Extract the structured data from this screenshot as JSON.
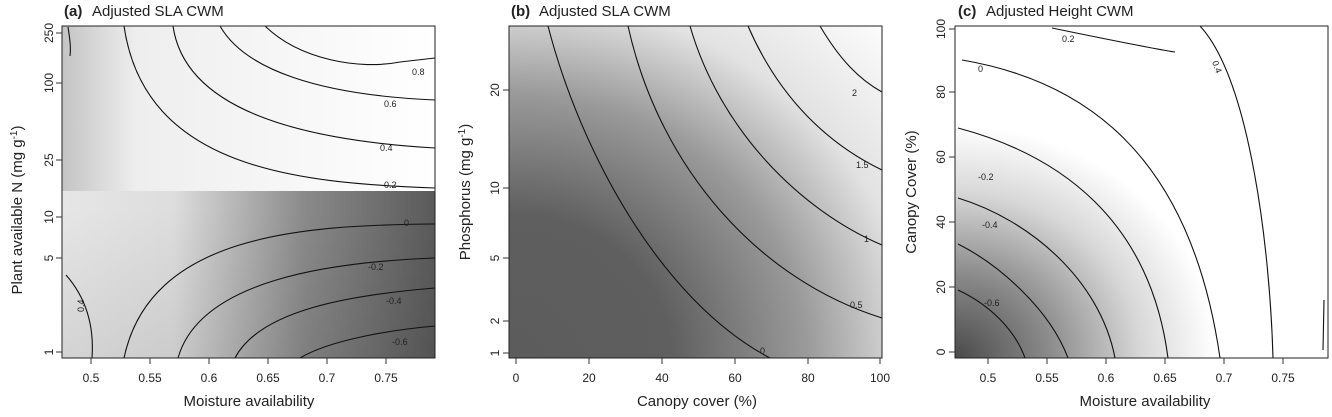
{
  "chart_data": [
    {
      "type": "heatmap",
      "panel_label": "(a)",
      "title": "Adjusted SLA CWM",
      "xlabel": "Moisture availability",
      "ylabel": "Plant available N (mg g-1)",
      "ylabel_sup": "-1",
      "ylabel_main": "Plant available N (mg g",
      "ylabel_close": ")",
      "xlim": [
        0.475,
        0.79
      ],
      "ylim": [
        0.95,
        280
      ],
      "yscale": "log",
      "xticks": [
        "0.5",
        "0.55",
        "0.6",
        "0.65",
        "0.7",
        "0.75"
      ],
      "yticks": [
        "1",
        "5",
        "10",
        "25",
        "100",
        "250"
      ],
      "contour_labels": [
        "0.8",
        "0.6",
        "0.4",
        "0.2",
        "0",
        "-0.2",
        "-0.4",
        "-0.6",
        "0.4"
      ]
    },
    {
      "type": "heatmap",
      "panel_label": "(b)",
      "title": "Adjusted SLA CWM",
      "xlabel": "Canopy cover (%)",
      "ylabel": "Phosphorus (mg g-1)",
      "ylabel_sup": "-1",
      "ylabel_main": "Phosphorus (mg g",
      "ylabel_close": ")",
      "xlim": [
        -2,
        100
      ],
      "ylim": [
        0.9,
        35
      ],
      "yscale": "log",
      "xticks": [
        "0",
        "20",
        "40",
        "60",
        "80",
        "100"
      ],
      "yticks": [
        "1",
        "2",
        "5",
        "10",
        "20"
      ],
      "contour_labels": [
        "2",
        "1.5",
        "1",
        "0.5",
        "0"
      ]
    },
    {
      "type": "heatmap",
      "panel_label": "(c)",
      "title": "Adjusted Height CWM",
      "xlabel": "Moisture availability",
      "ylabel": "Canopy Cover (%)",
      "xlim": [
        0.475,
        0.79
      ],
      "ylim": [
        -2,
        101
      ],
      "yscale": "linear",
      "xticks": [
        "0.5",
        "0.55",
        "0.6",
        "0.65",
        "0.7",
        "0.75"
      ],
      "yticks": [
        "0",
        "20",
        "40",
        "60",
        "80",
        "100"
      ],
      "contour_labels": [
        "0.2",
        "0.4",
        "0",
        "-0.2",
        "-0.4",
        "-0.6"
      ]
    }
  ]
}
